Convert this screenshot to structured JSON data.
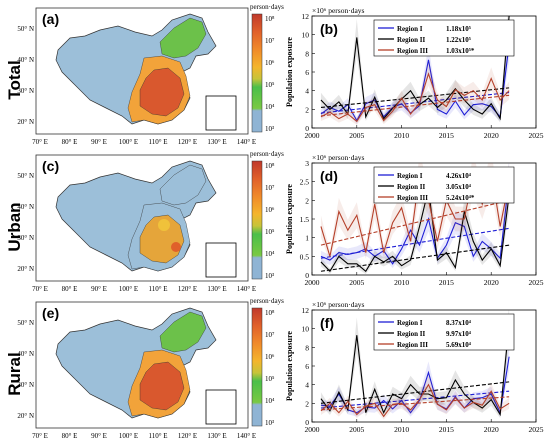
{
  "rows": [
    {
      "row_label": "Total",
      "map_panel": "(a)",
      "chart_panel": "(b)",
      "unit": "person·days",
      "ylabel": "Population exposure",
      "exponent": "×10⁶ person·days",
      "legend": [
        {
          "name": "Region I",
          "value": "1.18x10⁵",
          "color": "#1f1fd6"
        },
        {
          "name": "Region II",
          "value": "1.22x10⁵",
          "color": "#000000"
        },
        {
          "name": "Region III",
          "value": "1.03x10⁵*",
          "color": "#b5402a"
        }
      ]
    },
    {
      "row_label": "Urban",
      "map_panel": "(c)",
      "chart_panel": "(d)",
      "unit": "person·days",
      "ylabel": "Population exposure",
      "exponent": "×10⁶ person·days",
      "legend": [
        {
          "name": "Region I",
          "value": "4.26x10⁴",
          "color": "#1f1fd6"
        },
        {
          "name": "Region II",
          "value": "3.05x10⁴",
          "color": "#000000"
        },
        {
          "name": "Region III",
          "value": "5.24x10⁴*",
          "color": "#b5402a"
        }
      ]
    },
    {
      "row_label": "Rural",
      "map_panel": "(e)",
      "chart_panel": "(f)",
      "unit": "person·days",
      "ylabel": "Population exposure",
      "exponent": "×10⁶ person·days",
      "legend": [
        {
          "name": "Region I",
          "value": "8.37x10⁴",
          "color": "#1f1fd6"
        },
        {
          "name": "Region II",
          "value": "9.97x10⁴",
          "color": "#000000"
        },
        {
          "name": "Region III",
          "value": "5.69x10⁴",
          "color": "#b5402a"
        }
      ]
    }
  ],
  "map_axes": {
    "lon_ticks": [
      "70° E",
      "80° E",
      "90° E",
      "100° E",
      "110° E",
      "120° E",
      "130° E",
      "140° E"
    ],
    "lat_ticks": [
      "50° N",
      "40° N",
      "30° N",
      "20° N"
    ]
  },
  "colorbar": {
    "tick_labels": [
      "10⁸",
      "10⁷",
      "10⁶",
      "10⁵",
      "10⁴",
      "10³"
    ],
    "colors": [
      "#c0392b",
      "#e0602a",
      "#f08a2a",
      "#f4b52c",
      "#c6c43a",
      "#7ac943",
      "#4bbf4a",
      "#76a6c8",
      "#8fb4d4"
    ]
  },
  "chart_data": [
    {
      "type": "line",
      "title": "(b)",
      "ylabel": "Population exposure",
      "xlim": [
        2000,
        2025
      ],
      "ylim": [
        0,
        12
      ],
      "x_ticks": [
        2000,
        2005,
        2010,
        2015,
        2020,
        2025
      ],
      "y_ticks": [
        0,
        2,
        4,
        6,
        8,
        10,
        12
      ],
      "x": [
        2001,
        2002,
        2003,
        2004,
        2005,
        2006,
        2007,
        2008,
        2009,
        2010,
        2011,
        2012,
        2013,
        2014,
        2015,
        2016,
        2017,
        2018,
        2019,
        2020,
        2021,
        2022
      ],
      "series": [
        {
          "name": "Region I",
          "color": "#1f1fd6",
          "values": [
            1.5,
            2.2,
            1.8,
            2.5,
            0.8,
            2.6,
            3.0,
            1.2,
            2.2,
            2.6,
            1.6,
            2.4,
            7.3,
            2.0,
            1.5,
            2.9,
            1.4,
            2.5,
            2.6,
            2.3,
            1.2,
            9.0
          ],
          "trend": [
            1.6,
            3.8
          ]
        },
        {
          "name": "Region II",
          "color": "#000000",
          "values": [
            3.0,
            2.0,
            2.8,
            1.5,
            9.7,
            1.2,
            3.3,
            1.0,
            2.1,
            3.1,
            4.0,
            2.5,
            3.2,
            2.2,
            3.0,
            4.2,
            3.0,
            2.0,
            1.5,
            2.6,
            1.0,
            12.0
          ],
          "trend": [
            2.2,
            4.3
          ]
        },
        {
          "name": "Region III",
          "color": "#b5402a",
          "values": [
            1.2,
            1.7,
            1.0,
            1.5,
            0.7,
            2.2,
            2.5,
            0.8,
            1.8,
            3.2,
            1.5,
            2.7,
            5.8,
            3.0,
            2.3,
            4.1,
            3.5,
            4.0,
            3.0,
            5.3,
            3.0,
            4.0
          ],
          "trend": [
            1.3,
            3.5
          ]
        }
      ]
    },
    {
      "type": "line",
      "title": "(d)",
      "ylabel": "Population exposure",
      "xlim": [
        2000,
        2025
      ],
      "ylim": [
        0,
        3
      ],
      "x_ticks": [
        2000,
        2005,
        2010,
        2015,
        2020,
        2025
      ],
      "y_ticks": [
        0,
        0.5,
        1,
        1.5,
        2,
        2.5,
        3
      ],
      "x": [
        2001,
        2002,
        2003,
        2004,
        2005,
        2006,
        2007,
        2008,
        2009,
        2010,
        2011,
        2012,
        2013,
        2014,
        2015,
        2016,
        2017,
        2018,
        2019,
        2020,
        2021,
        2022
      ],
      "series": [
        {
          "name": "Region I",
          "color": "#1f1fd6",
          "values": [
            0.5,
            0.4,
            0.6,
            0.55,
            0.6,
            0.7,
            0.5,
            0.65,
            0.3,
            0.7,
            1.2,
            0.8,
            1.5,
            0.45,
            0.8,
            1.4,
            1.3,
            0.5,
            0.9,
            0.7,
            0.45,
            2.6
          ],
          "trend": [
            0.45,
            1.25
          ]
        },
        {
          "name": "Region II",
          "color": "#000000",
          "values": [
            0.35,
            0.1,
            0.5,
            0.3,
            0.3,
            0.1,
            0.5,
            0.35,
            0.5,
            0.25,
            0.4,
            1.3,
            2.3,
            0.4,
            0.6,
            0.2,
            1.7,
            0.9,
            0.4,
            0.7,
            0.25,
            2.15
          ],
          "trend": [
            0.1,
            0.8
          ]
        },
        {
          "name": "Region III",
          "color": "#b5402a",
          "values": [
            1.3,
            0.5,
            1.7,
            1.2,
            1.6,
            0.6,
            1.9,
            0.6,
            1.4,
            1.8,
            0.9,
            2.7,
            2.0,
            0.9,
            2.0,
            1.5,
            1.5,
            2.7,
            1.9,
            2.8,
            1.3,
            2.5
          ],
          "trend": [
            0.8,
            2.0
          ]
        }
      ]
    },
    {
      "type": "line",
      "title": "(f)",
      "ylabel": "Population exposure",
      "xlim": [
        2000,
        2025
      ],
      "ylim": [
        0,
        12
      ],
      "x_ticks": [
        2000,
        2005,
        2010,
        2015,
        2020,
        2025
      ],
      "y_ticks": [
        0,
        2,
        4,
        6,
        8,
        10,
        12
      ],
      "x": [
        2001,
        2002,
        2003,
        2004,
        2005,
        2006,
        2007,
        2008,
        2009,
        2010,
        2011,
        2012,
        2013,
        2014,
        2015,
        2016,
        2017,
        2018,
        2019,
        2020,
        2021,
        2022
      ],
      "series": [
        {
          "name": "Region I",
          "color": "#1f1fd6",
          "values": [
            1.8,
            1.7,
            3.0,
            1.3,
            1.0,
            1.6,
            1.5,
            2.3,
            1.4,
            2.3,
            1.0,
            2.3,
            5.3,
            1.9,
            1.4,
            2.7,
            1.5,
            2.5,
            2.6,
            3.0,
            1.0,
            7.0
          ],
          "trend": [
            1.5,
            3.3
          ]
        },
        {
          "name": "Region II",
          "color": "#000000",
          "values": [
            2.5,
            1.2,
            3.2,
            1.3,
            9.3,
            1.0,
            3.5,
            1.0,
            3.0,
            2.5,
            4.0,
            3.0,
            3.0,
            2.5,
            2.6,
            4.5,
            3.0,
            2.1,
            1.5,
            2.4,
            0.8,
            10.5
          ],
          "trend": [
            2.0,
            4.3
          ]
        },
        {
          "name": "Region III",
          "color": "#b5402a",
          "values": [
            1.2,
            2.0,
            1.0,
            2.2,
            0.8,
            1.7,
            2.0,
            0.6,
            1.9,
            2.0,
            1.3,
            2.4,
            4.0,
            1.9,
            1.3,
            2.6,
            1.5,
            2.1,
            1.8,
            3.3,
            1.4,
            2.0
          ],
          "trend": [
            1.3,
            2.7
          ]
        }
      ]
    }
  ]
}
